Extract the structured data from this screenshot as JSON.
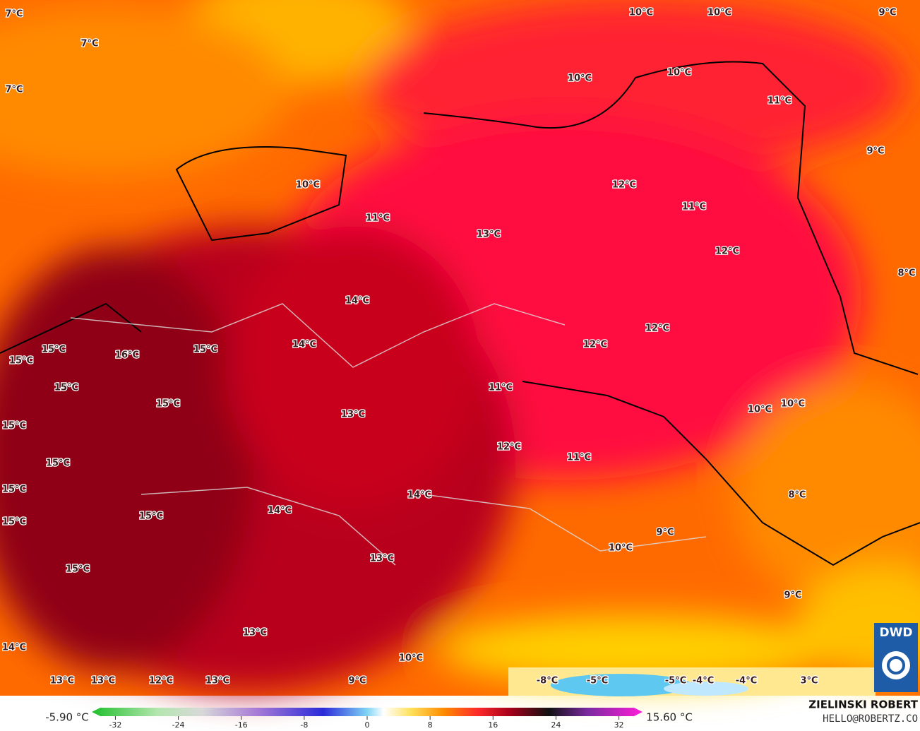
{
  "map": {
    "temperature_labels": [
      "7°C",
      "7°C",
      "7°C",
      "10°C",
      "10°C",
      "9°C",
      "10°C",
      "10°C",
      "11°C",
      "9°C",
      "10°C",
      "12°C",
      "11°C",
      "11°C",
      "13°C",
      "12°C",
      "8°C",
      "14°C",
      "12°C",
      "14°C",
      "12°C",
      "15°C",
      "15°C",
      "16°C",
      "15°C",
      "11°C",
      "15°C",
      "15°C",
      "10°C",
      "10°C",
      "13°C",
      "15°C",
      "12°C",
      "11°C",
      "15°C",
      "15°C",
      "8°C",
      "14°C",
      "14°C",
      "15°C",
      "15°C",
      "9°C",
      "10°C",
      "13°C",
      "15°C",
      "9°C",
      "13°C",
      "14°C",
      "10°C",
      "13°C",
      "13°C",
      "12°C",
      "13°C",
      "9°C",
      "-8°C",
      "-5°C",
      "-5°C",
      "-4°C",
      "-4°C",
      "3°C"
    ],
    "logo": "DWD"
  },
  "colorbar": {
    "min_label": "-5.90 °C",
    "max_label": "15.60 °C",
    "lim": [
      -35,
      35
    ],
    "ticks": [
      -32,
      -24,
      -16,
      -8,
      0,
      8,
      16,
      24,
      32
    ]
  },
  "credits": {
    "author": "ZIELINSKI ROBERT",
    "contact": "HELLO@ROBERTZ.CO"
  }
}
